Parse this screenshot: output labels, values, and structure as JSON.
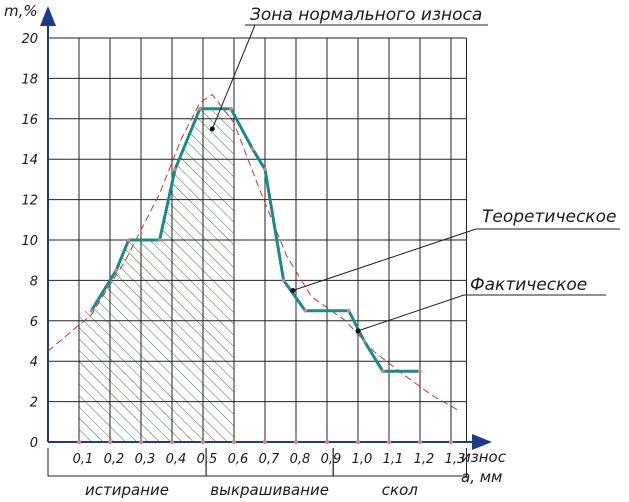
{
  "chart_data": {
    "type": "line",
    "ylabel": "m,%",
    "xlabel": "износ",
    "xunit": "a, мм",
    "xlim": [
      0,
      1.35
    ],
    "ylim": [
      0,
      20
    ],
    "x_ticks": [
      "0,1",
      "0,2",
      "0,3",
      "0,4",
      "0,5",
      "0,6",
      "0,7",
      "0,8",
      "0,9",
      "1,0",
      "1,1",
      "1,2",
      "1,3"
    ],
    "y_ticks": [
      "0",
      "2",
      "4",
      "6",
      "8",
      "10",
      "12",
      "14",
      "16",
      "18",
      "20"
    ],
    "grid": true,
    "series": [
      {
        "name": "Фактическое",
        "color": "#1a8a8a",
        "x": [
          0.14,
          0.22,
          0.26,
          0.36,
          0.41,
          0.49,
          0.59,
          0.66,
          0.7,
          0.76,
          0.83,
          0.97,
          1.02,
          1.08,
          1.2
        ],
        "y": [
          6.5,
          8.5,
          10.0,
          10.0,
          13.5,
          16.5,
          16.5,
          14.5,
          13.5,
          8.0,
          6.5,
          6.5,
          5.0,
          3.5,
          3.5
        ]
      },
      {
        "name": "Теоретическое",
        "color": "#cc3333",
        "x": [
          0.0,
          0.14,
          0.25,
          0.36,
          0.43,
          0.49,
          0.53,
          0.6,
          0.68,
          0.77,
          0.85,
          0.96,
          1.05,
          1.15,
          1.24,
          1.32
        ],
        "y": [
          4.5,
          6.3,
          9.0,
          12.3,
          15.0,
          16.8,
          17.2,
          15.8,
          12.6,
          9.2,
          7.2,
          6.0,
          4.5,
          3.3,
          2.3,
          1.6
        ]
      }
    ],
    "shaded_region": {
      "x": [
        0.1,
        0.6
      ]
    },
    "zones": [
      {
        "label": "истирание",
        "x": [
          0.0,
          0.51
        ]
      },
      {
        "label": "выкрашивание",
        "x": [
          0.51,
          0.92
        ]
      },
      {
        "label": "скол",
        "x": [
          0.92,
          1.35
        ]
      }
    ],
    "annotations": [
      {
        "text": "Зона нормального износа",
        "target": [
          0.53,
          15.5
        ]
      },
      {
        "text": "Теоретическое",
        "target": [
          0.79,
          7.5
        ]
      },
      {
        "text": "Фактическое",
        "target": [
          1.0,
          5.5
        ]
      }
    ]
  }
}
